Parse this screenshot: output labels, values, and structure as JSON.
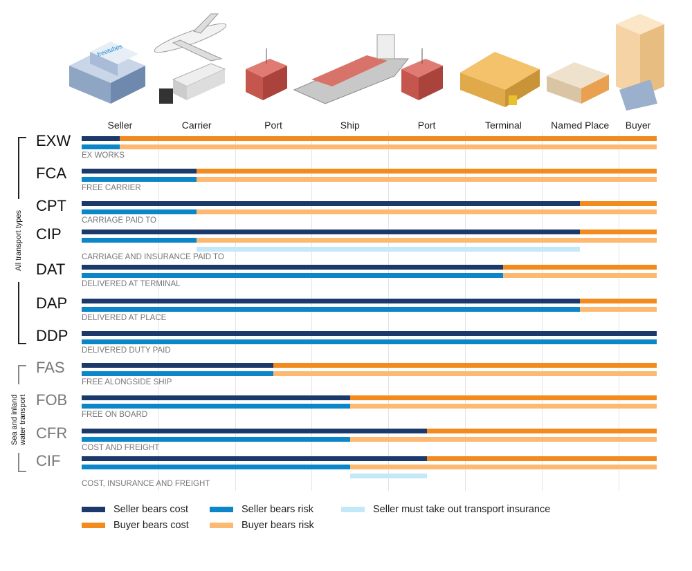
{
  "colors": {
    "seller_cost": "#1b3a6b",
    "buyer_cost": "#f28a1e",
    "seller_risk": "#0a86c9",
    "buyer_risk": "#fdb872",
    "insurance": "#c4e8f7"
  },
  "brand_on_building": "freetubes",
  "stages": [
    "Seller",
    "Carrier",
    "Port",
    "Ship",
    "Port",
    "Terminal",
    "Named Place",
    "Buyer"
  ],
  "groups": [
    {
      "label": "All transport types"
    },
    {
      "label_lines": [
        "Sea and inland",
        "water transport"
      ]
    }
  ],
  "chart_data": {
    "type": "bar",
    "axis_units": "stage columns (0 = Seller start, 7.5 = Buyer end)",
    "max": 7.5,
    "rows": [
      {
        "code": "EXW",
        "name": "EX WORKS",
        "group": 0,
        "cost_transfer": 0.5,
        "risk_transfer": 0.5
      },
      {
        "code": "FCA",
        "name": "FREE CARRIER",
        "group": 0,
        "cost_transfer": 1.5,
        "risk_transfer": 1.5
      },
      {
        "code": "CPT",
        "name": "CARRIAGE PAID TO",
        "group": 0,
        "cost_transfer": 6.5,
        "risk_transfer": 1.5
      },
      {
        "code": "CIP",
        "name": "CARRIAGE AND INSURANCE PAID TO",
        "group": 0,
        "cost_transfer": 6.5,
        "risk_transfer": 1.5,
        "insurance": [
          1.5,
          6.5
        ]
      },
      {
        "code": "DAT",
        "name": "DELIVERED AT TERMINAL",
        "group": 0,
        "cost_transfer": 5.5,
        "risk_transfer": 5.5
      },
      {
        "code": "DAP",
        "name": "DELIVERED AT PLACE",
        "group": 0,
        "cost_transfer": 6.5,
        "risk_transfer": 6.5
      },
      {
        "code": "DDP",
        "name": "DELIVERED DUTY PAID",
        "group": 0,
        "cost_transfer": 7.5,
        "risk_transfer": 7.5
      },
      {
        "code": "FAS",
        "name": "FREE ALONGSIDE SHIP",
        "group": 1,
        "cost_transfer": 2.5,
        "risk_transfer": 2.5
      },
      {
        "code": "FOB",
        "name": "FREE ON BOARD",
        "group": 1,
        "cost_transfer": 3.5,
        "risk_transfer": 3.5
      },
      {
        "code": "CFR",
        "name": "COST AND FREIGHT",
        "group": 1,
        "cost_transfer": 4.5,
        "risk_transfer": 3.5
      },
      {
        "code": "CIF",
        "name": "COST, INSURANCE AND FREIGHT",
        "group": 1,
        "cost_transfer": 4.5,
        "risk_transfer": 3.5,
        "insurance": [
          3.5,
          4.5
        ]
      }
    ]
  },
  "legend": {
    "seller_cost": "Seller bears cost",
    "buyer_cost": "Buyer bears cost",
    "seller_risk": "Seller bears risk",
    "buyer_risk": "Buyer bears risk",
    "insurance": "Seller must take out transport insurance"
  }
}
